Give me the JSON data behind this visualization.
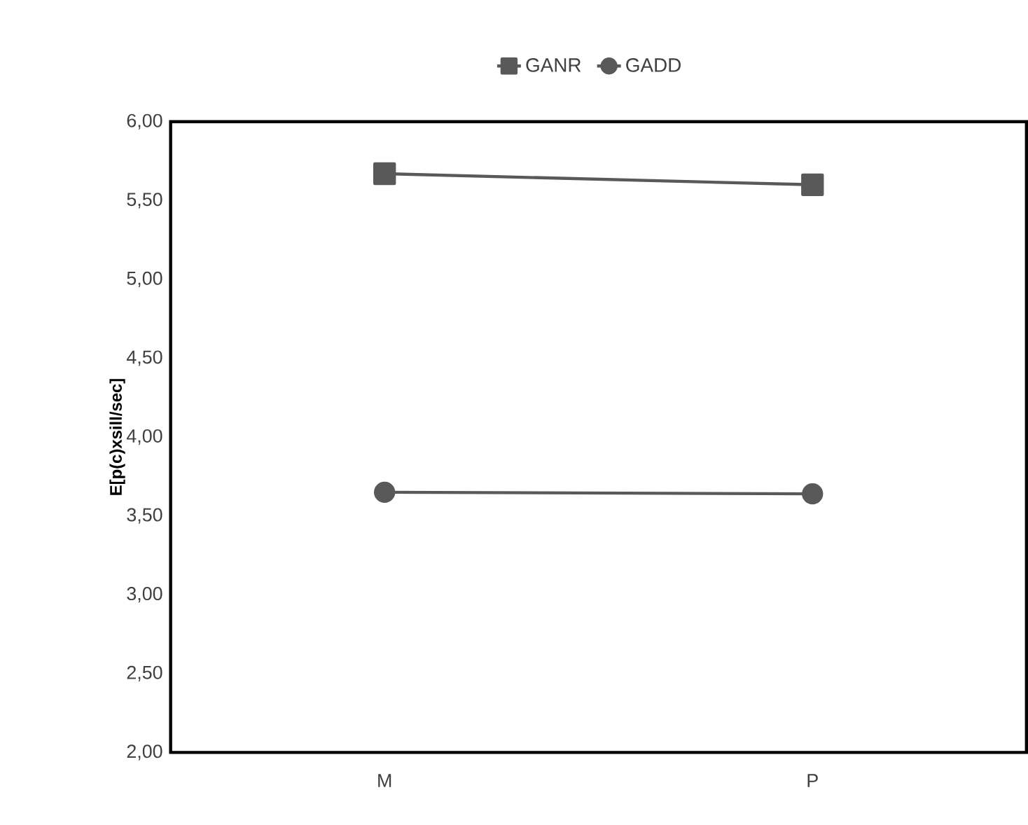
{
  "chart_data": {
    "type": "line",
    "ylabel": "E[p(c)xsill/sec]",
    "categories": [
      "M",
      "P"
    ],
    "series": [
      {
        "name": "GANR",
        "color": "#595959",
        "marker": "square",
        "values": [
          5.67,
          5.6
        ]
      },
      {
        "name": "GADD",
        "color": "#595959",
        "marker": "circle",
        "values": [
          3.65,
          3.64
        ]
      }
    ],
    "ylim": [
      2,
      6
    ],
    "yticks": [
      {
        "value": 2,
        "label": "2,00"
      },
      {
        "value": 2.5,
        "label": "2,50"
      },
      {
        "value": 3,
        "label": "3,00"
      },
      {
        "value": 3.5,
        "label": "3,50"
      },
      {
        "value": 4,
        "label": "4,00"
      },
      {
        "value": 4.5,
        "label": "4,50"
      },
      {
        "value": 5,
        "label": "5,00"
      },
      {
        "value": 5.5,
        "label": "5,50"
      },
      {
        "value": 6,
        "label": "6,00"
      }
    ],
    "grid": false,
    "legend": "top",
    "line_style": "solid"
  }
}
